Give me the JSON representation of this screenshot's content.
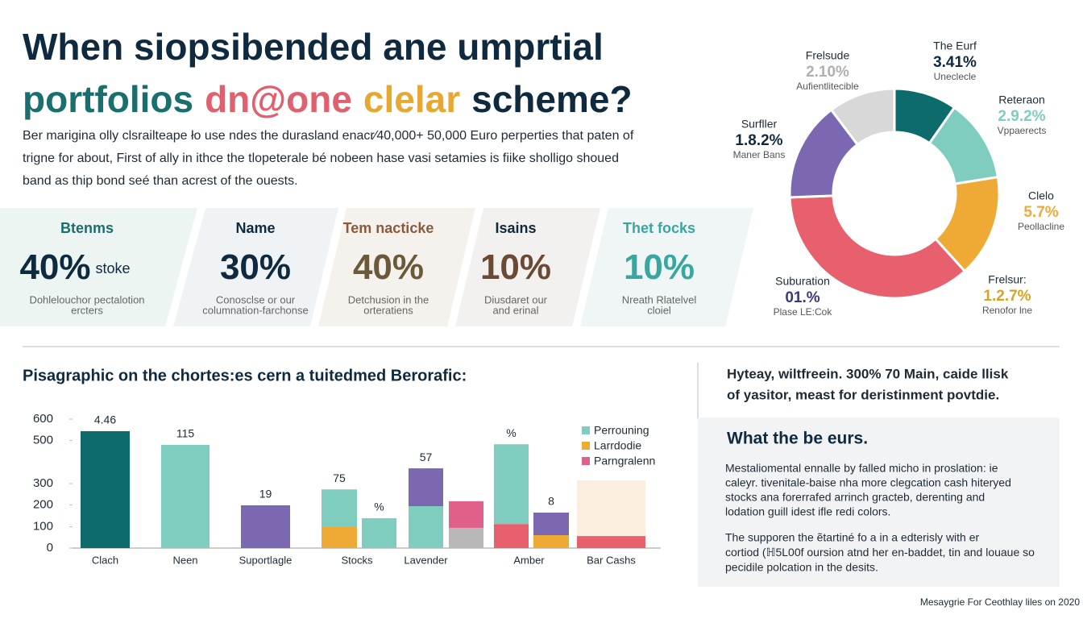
{
  "header": {
    "title_line1": "When siopsibended ane umprtial",
    "title_line2": [
      {
        "text": "portfolios",
        "color": "#1a6e6e"
      },
      {
        "text": "dn@one",
        "color": "#e0606e"
      },
      {
        "text": "clelar",
        "color": "#e6a830"
      },
      {
        "text": "scheme?",
        "color": "#0f2a3f"
      }
    ],
    "intro": [
      "Ber marigina olly clsrailteape ło use ndes the durasland enacr⁄40,000+ 50,000 Euro  perperties that paten of",
      "trigne for about, First of ally in ithce the tlopeterale bé nobeen hase vasi setamies is fiike sholligo shoued",
      "band as thip bond seé than acrest of the ouests."
    ]
  },
  "stats": [
    {
      "label": "Btenms",
      "label_color": "#1a6e6e",
      "value": "40%",
      "suffix": "stoke",
      "value_color": "#0f2a3f",
      "note": [
        "Dohlelouchor pectalotion",
        "ercters"
      ]
    },
    {
      "label": "Name",
      "label_color": "#0f2a3f",
      "value": "30%",
      "value_color": "#0f2a3f",
      "note": [
        "Conosclse or our",
        "columnation-farchonse"
      ]
    },
    {
      "label": "Tem nacticke",
      "label_color": "#8a5a3a",
      "value": "40%",
      "value_color": "#6b5a3a",
      "note": [
        "Detchusion in the",
        "orteratiens"
      ]
    },
    {
      "label": "Isains",
      "label_color": "#0f2a3f",
      "value": "10%",
      "value_color": "#6b4a35",
      "note": [
        "Diusdaret our",
        "and erinal"
      ]
    },
    {
      "label": "Thet focks",
      "label_color": "#3aa6a0",
      "value": "10%",
      "value_color": "#3aa6a0",
      "note": [
        "Nreath Rlatelvel",
        "cloiel"
      ]
    }
  ],
  "chart_data": [
    {
      "type": "donut",
      "values": [
        9.7,
        12.8,
        15.8,
        36.1,
        15.3,
        10.3
      ],
      "colors": [
        "#0e6b6b",
        "#7fcdbf",
        "#eeaa35",
        "#e8606e",
        "#7b68b0",
        "#d8d8d8"
      ],
      "annotations": [
        {
          "title": "Frelsude",
          "value": "2.10%",
          "note": "Aufientlitecible",
          "color": "#b0b0b0"
        },
        {
          "title": "The Eurf",
          "value": "3.41%",
          "note": "Uneclecle",
          "color": "#0f2a3f"
        },
        {
          "title": "Reteraon",
          "value": "2.9.2%",
          "note": "Vppaerects",
          "color": "#7fcdbf"
        },
        {
          "title": "Clelo",
          "value": "5.7%",
          "note": "Peollacline",
          "color": "#eeaa35"
        },
        {
          "title": "Frelsur:",
          "value": "1.2.7%",
          "note": "Renofor lne",
          "color": "#e0a020"
        },
        {
          "title": "Surfller",
          "value": "1.8.2%",
          "note": "Maner Bans",
          "color": "#0f2a3f"
        },
        {
          "title": "Suburation",
          "value": "01.%",
          "note": "Plase LE:Cok",
          "color": "#3a3a7a"
        }
      ]
    },
    {
      "type": "stacked_bar",
      "title": "Pisagraphic on the chortes:es cern a tuitedmed Berorafic:",
      "categories": [
        "Clach",
        "Neen",
        "Suportlagle",
        "Stocks",
        null,
        "Lavender",
        null,
        "Amber",
        null,
        "Bar Cashs"
      ],
      "stacks": [
        [
          {
            "value": 544,
            "color": "#0e6b6b"
          }
        ],
        [
          {
            "value": 480,
            "color": "#7fcdbf"
          }
        ],
        [
          {
            "value": 199,
            "color": "#7b68b0"
          }
        ],
        [
          {
            "value": 101,
            "color": "#eeaa35"
          },
          {
            "value": 172,
            "color": "#7fcdbf"
          }
        ],
        [
          {
            "value": 139,
            "color": "#7fcdbf"
          }
        ],
        [
          {
            "value": 195,
            "color": "#7fcdbf"
          },
          {
            "value": 176,
            "color": "#7b68b0"
          }
        ],
        [
          {
            "value": 94,
            "color": "#b8b8b8"
          },
          {
            "value": 124,
            "color": "#e0608a"
          }
        ],
        [
          {
            "value": 112,
            "color": "#e8606e"
          },
          {
            "value": 371,
            "color": "#7fcdbf"
          }
        ],
        [
          {
            "value": 60,
            "color": "#eeaa35"
          },
          {
            "value": 105,
            "color": "#7b68b0"
          }
        ],
        [
          {
            "value": 56,
            "color": "#e8606e"
          },
          {
            "value": 259,
            "color": "#fbeee0"
          }
        ]
      ],
      "top_labels": [
        "4.46",
        "115",
        "19",
        "75",
        "%",
        "57",
        null,
        "%",
        "8",
        null
      ],
      "legend": [
        {
          "name": "Perrouning",
          "color": "#7fcdbf"
        },
        {
          "name": "Larrdodie",
          "color": "#eeaa35"
        },
        {
          "name": "Parngralenn",
          "color": "#e0608a"
        }
      ],
      "ylim": [
        0,
        600
      ],
      "yticks": [
        0,
        100,
        200,
        300,
        500,
        600
      ]
    }
  ],
  "sidebar": {
    "heading": [
      "Hyteay, wiltfreein. 300% 70 Main, caide llisk",
      "of yasitor, meast for deristinment povtdie."
    ],
    "box_title": "What the be eurs.",
    "para1": [
      "Mestaliomental ennalle by falled micho in proslation: ie",
      "caleyr. tivenitale-baise nha more clegcation cash hiteryed",
      "stocks ana forerrafed arrinch gracteb, derenting and",
      "lodation guill idest ifle redi colors."
    ],
    "para2": [
      "The supporen the ẽtartiné fo a in a edterisly with er",
      "cortiod (ℍ5L00f oursion atnd her en-baddet, tin and louaue so",
      "pecidile polcation in the desits."
    ]
  },
  "footer": "Mesaygrie For Ceothlay liles on 2020"
}
